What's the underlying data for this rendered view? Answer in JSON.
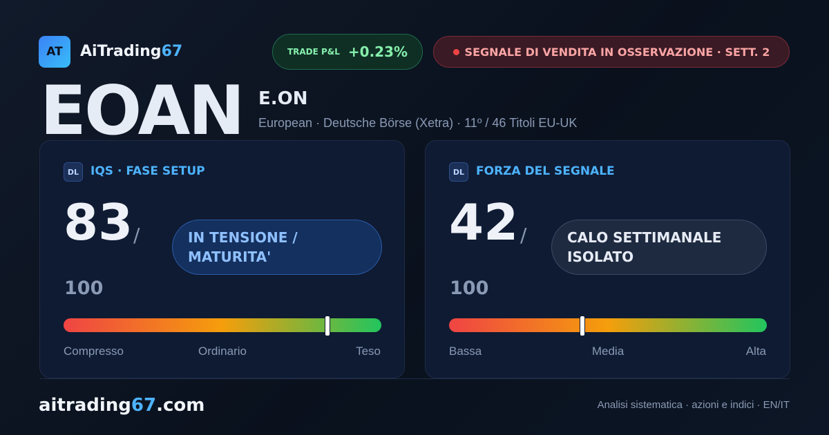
{
  "header": {
    "logo": "AT",
    "brand": "AiTrading",
    "brand_accent": "67",
    "pnl_label": "TRADE P&L",
    "pnl_value": "+0.23%",
    "signal": "SEGNALE DI VENDITA IN OSSERVAZIONE · SETT. 2"
  },
  "ticker": {
    "symbol": "EOAN",
    "name": "E.ON",
    "details": "European · Deutsche Börse (Xetra) · 11º / 46 Titoli EU-UK"
  },
  "cards": [
    {
      "icon": "DL",
      "title": "IQS · FASE SETUP",
      "score": 83,
      "separator": "/",
      "max": 100,
      "status": "IN TENSIONE / MATURITA'",
      "scale_labels": [
        "Compresso",
        "Ordinario",
        "Teso"
      ]
    },
    {
      "icon": "DL",
      "title": "FORZA DEL SEGNALE",
      "score": 42,
      "separator": "/",
      "max": 100,
      "status": "CALO SETTIMANALE ISOLATO",
      "scale_labels": [
        "Bassa",
        "Media",
        "Alta"
      ]
    }
  ],
  "footer": {
    "site": "aitrading",
    "site_accent": "67",
    "site_tld": ".com",
    "tagline": "Analisi sistematica · azioni e indici · EN/IT"
  }
}
